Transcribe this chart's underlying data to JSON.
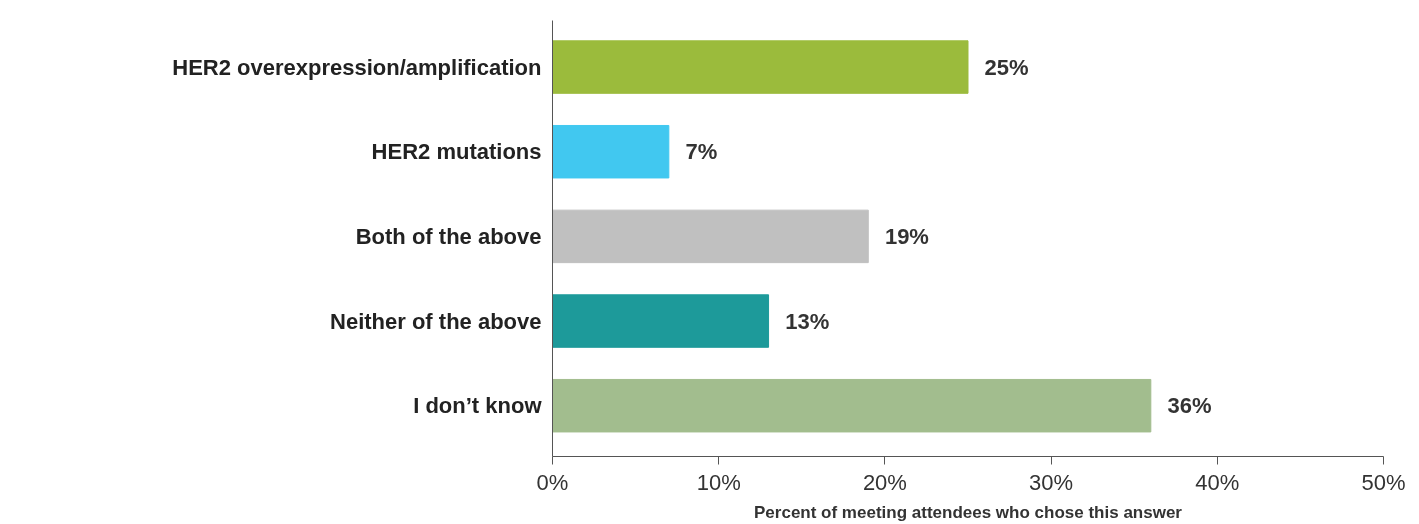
{
  "chart_data": {
    "type": "bar",
    "orientation": "horizontal",
    "xlabel": "Percent of meeting attendees who chose this answer",
    "categories": [
      "HER2 overexpression/amplification",
      "HER2 mutations",
      "Both of the above",
      "Neither of the above",
      "I don’t know"
    ],
    "values": [
      25,
      7,
      19,
      13,
      36
    ],
    "colors": [
      "#9bbb3c",
      "#41c8f0",
      "#c0c0c0",
      "#1d9a9a",
      "#a2bd8e"
    ],
    "value_labels": [
      "25%",
      "7%",
      "19%",
      "13%",
      "36%"
    ],
    "xlim": [
      0,
      50
    ],
    "xticks": [
      {
        "value": 0,
        "label": "0%"
      },
      {
        "value": 10,
        "label": "10%"
      },
      {
        "value": 20,
        "label": "20%"
      },
      {
        "value": 30,
        "label": "30%"
      },
      {
        "value": 40,
        "label": "40%"
      },
      {
        "value": 50,
        "label": "50%"
      }
    ],
    "grid": false
  }
}
